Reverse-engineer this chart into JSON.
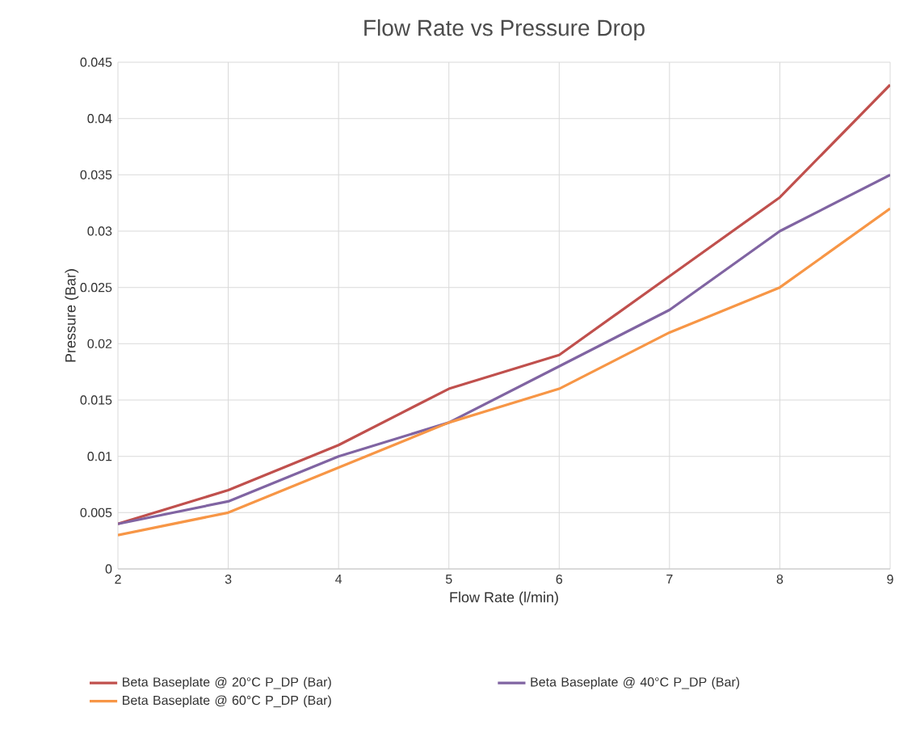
{
  "chart_data": {
    "type": "line",
    "title": "Flow Rate vs Pressure Drop",
    "xlabel": "Flow Rate (l/min)",
    "ylabel": "Pressure (Bar)",
    "x": [
      2,
      3,
      4,
      5,
      6,
      7,
      8,
      9
    ],
    "series": [
      {
        "name": "Beta Baseplate  @ 20°C P_DP (Bar)",
        "color": "#c0504d",
        "values": [
          0.004,
          0.007,
          0.011,
          0.016,
          0.019,
          0.026,
          0.033,
          0.043
        ]
      },
      {
        "name": "Beta Baseplate  @ 40°C P_DP (Bar)",
        "color": "#8064a2",
        "values": [
          0.004,
          0.006,
          0.01,
          0.013,
          0.018,
          0.023,
          0.03,
          0.035
        ]
      },
      {
        "name": "Beta Baseplate  @ 60°C P_DP (Bar)",
        "color": "#f79646",
        "values": [
          0.003,
          0.005,
          0.009,
          0.013,
          0.016,
          0.021,
          0.025,
          0.032
        ]
      }
    ],
    "xlim": [
      2,
      9
    ],
    "ylim": [
      0,
      0.045
    ],
    "xticks": [
      2,
      3,
      4,
      5,
      6,
      7,
      8,
      9
    ],
    "yticks": [
      0,
      0.005,
      0.01,
      0.015,
      0.02,
      0.025,
      0.03,
      0.035,
      0.04,
      0.045
    ],
    "grid": true,
    "legend": "bottom"
  }
}
